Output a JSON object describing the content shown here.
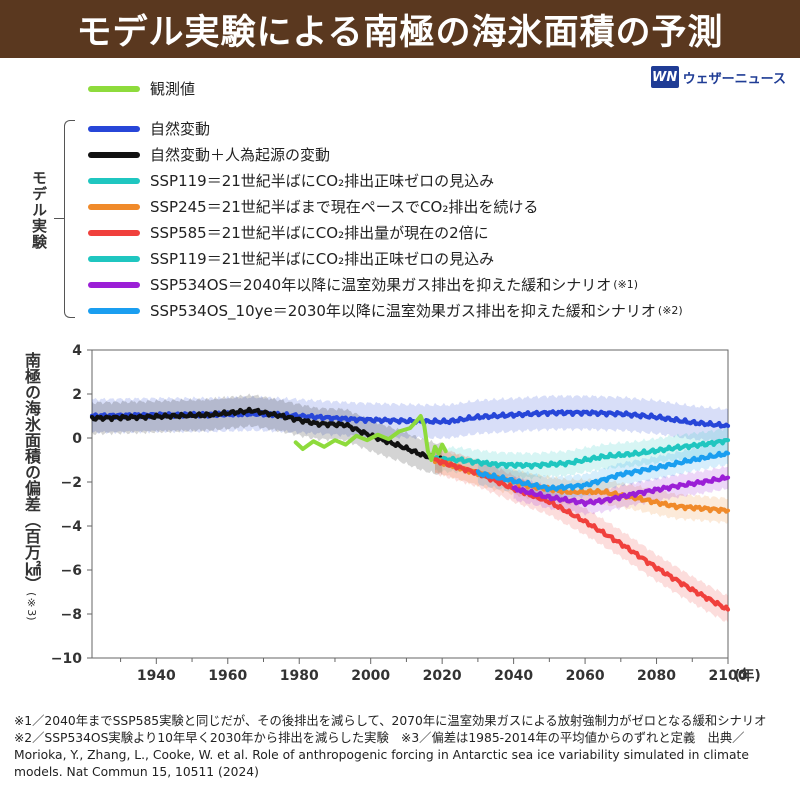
{
  "header": {
    "title": "モデル実験による南極の海氷面積の予測"
  },
  "brand": {
    "logo_text": "WN",
    "name": "ウェザーニュース"
  },
  "legend": {
    "observed": {
      "label": "観測値",
      "color": "#8edb3c"
    },
    "group_label": "モデル実験",
    "models": [
      {
        "label": "自然変動",
        "color": "#2746d8",
        "note": ""
      },
      {
        "label": "自然変動＋人為起源の変動",
        "color": "#111111",
        "note": ""
      },
      {
        "label": "SSP119＝21世紀半ばにCO₂排出正味ゼロの見込み",
        "color": "#1fc6c0",
        "note": ""
      },
      {
        "label": "SSP245＝21世紀半ばまで現在ペースでCO₂排出を続ける",
        "color": "#f08a2a",
        "note": ""
      },
      {
        "label": "SSP585＝21世紀半ばにCO₂排出量が現在の2倍に",
        "color": "#f0403c",
        "note": ""
      },
      {
        "label": "SSP119＝21世紀半ばにCO₂排出正味ゼロの見込み",
        "color": "#1fc6c0",
        "note": ""
      },
      {
        "label": "SSP534OS＝2040年以降に温室効果ガス排出を抑えた緩和シナリオ",
        "color": "#9b1fd6",
        "note": "(※1)"
      },
      {
        "label": "SSP534OS_10ye＝2030年以降に温室効果ガス排出を抑えた緩和シナリオ",
        "color": "#1a9ef0",
        "note": "(※2)"
      }
    ]
  },
  "axis": {
    "ylabel": "南極の海氷面積の偏差（百万㎢）",
    "ylabel_note": "(※3)",
    "x_unit": "(年)"
  },
  "chart_data": {
    "type": "line",
    "xlabel": "(年)",
    "ylabel": "南極の海氷面積の偏差（百万㎢）(※3)",
    "xlim": [
      1922,
      2100
    ],
    "ylim": [
      -10,
      4
    ],
    "xticks": [
      1940,
      1960,
      1980,
      2000,
      2020,
      2040,
      2060,
      2080,
      2100
    ],
    "yticks": [
      4,
      2,
      0,
      -2,
      -4,
      -6,
      -8,
      -10
    ],
    "grid": false,
    "series": [
      {
        "name": "自然変動",
        "color": "#2746d8",
        "band": 0.75,
        "points": [
          [
            1922,
            1.0
          ],
          [
            1940,
            1.05
          ],
          [
            1955,
            1.05
          ],
          [
            1967,
            1.1
          ],
          [
            1975,
            1.05
          ],
          [
            1985,
            0.95
          ],
          [
            1995,
            0.85
          ],
          [
            2005,
            0.8
          ],
          [
            2015,
            0.75
          ],
          [
            2022,
            0.75
          ],
          [
            2030,
            0.95
          ],
          [
            2040,
            1.05
          ],
          [
            2050,
            1.15
          ],
          [
            2060,
            1.15
          ],
          [
            2070,
            1.1
          ],
          [
            2080,
            0.95
          ],
          [
            2090,
            0.7
          ],
          [
            2100,
            0.55
          ]
        ]
      },
      {
        "name": "自然変動＋人為起源の変動",
        "color": "#111111",
        "band": 0.7,
        "points": [
          [
            1922,
            0.9
          ],
          [
            1935,
            0.95
          ],
          [
            1945,
            1.0
          ],
          [
            1955,
            1.05
          ],
          [
            1967,
            1.25
          ],
          [
            1975,
            1.0
          ],
          [
            1985,
            0.65
          ],
          [
            1993,
            0.6
          ],
          [
            2000,
            0.1
          ],
          [
            2008,
            -0.35
          ],
          [
            2015,
            -0.8
          ],
          [
            2020,
            -1.0
          ]
        ]
      },
      {
        "name": "SSP119＝21世紀半ばにCO₂排出正味ゼロの見込み",
        "color": "#1fc6c0",
        "band": 0.55,
        "points": [
          [
            2018,
            -0.95
          ],
          [
            2025,
            -1.0
          ],
          [
            2035,
            -1.2
          ],
          [
            2045,
            -1.25
          ],
          [
            2055,
            -1.15
          ],
          [
            2065,
            -0.85
          ],
          [
            2075,
            -0.7
          ],
          [
            2085,
            -0.45
          ],
          [
            2095,
            -0.25
          ],
          [
            2100,
            -0.1
          ]
        ]
      },
      {
        "name": "SSP245＝21世紀半ばまで現在ペースでCO₂排出を続ける",
        "color": "#f08a2a",
        "band": 0.55,
        "points": [
          [
            2018,
            -1.0
          ],
          [
            2030,
            -1.6
          ],
          [
            2045,
            -2.2
          ],
          [
            2055,
            -2.45
          ],
          [
            2065,
            -2.45
          ],
          [
            2075,
            -2.75
          ],
          [
            2085,
            -3.1
          ],
          [
            2093,
            -3.2
          ],
          [
            2100,
            -3.3
          ]
        ]
      },
      {
        "name": "SSP585＝21世紀半ばにCO₂排出量が現在の2倍に",
        "color": "#f0403c",
        "band": 0.6,
        "points": [
          [
            2018,
            -1.0
          ],
          [
            2030,
            -1.6
          ],
          [
            2040,
            -2.3
          ],
          [
            2050,
            -2.9
          ],
          [
            2060,
            -3.8
          ],
          [
            2070,
            -4.8
          ],
          [
            2080,
            -5.9
          ],
          [
            2090,
            -6.9
          ],
          [
            2100,
            -7.8
          ]
        ]
      },
      {
        "name": "SSP534OS＝2040年以降に温室効果ガス排出を抑えた緩和シナリオ",
        "color": "#9b1fd6",
        "band": 0.5,
        "points": [
          [
            2040,
            -2.3
          ],
          [
            2050,
            -2.7
          ],
          [
            2060,
            -2.95
          ],
          [
            2065,
            -2.85
          ],
          [
            2075,
            -2.5
          ],
          [
            2085,
            -2.2
          ],
          [
            2093,
            -2.0
          ],
          [
            2100,
            -1.8
          ]
        ]
      },
      {
        "name": "SSP534OS_10ye＝2030年以降に温室効果ガス排出を抑えた緩和シナリオ",
        "color": "#1a9ef0",
        "band": 0.5,
        "points": [
          [
            2030,
            -1.6
          ],
          [
            2040,
            -1.95
          ],
          [
            2050,
            -2.3
          ],
          [
            2060,
            -2.15
          ],
          [
            2070,
            -1.65
          ],
          [
            2080,
            -1.35
          ],
          [
            2090,
            -1.0
          ],
          [
            2100,
            -0.7
          ]
        ]
      },
      {
        "name": "観測値",
        "color": "#8edb3c",
        "band": 0,
        "points": [
          [
            1979,
            -0.2
          ],
          [
            1981,
            -0.5
          ],
          [
            1984,
            -0.15
          ],
          [
            1987,
            -0.4
          ],
          [
            1990,
            -0.1
          ],
          [
            1993,
            -0.3
          ],
          [
            1996,
            0.1
          ],
          [
            1999,
            -0.1
          ],
          [
            2002,
            0.15
          ],
          [
            2005,
            -0.05
          ],
          [
            2008,
            0.3
          ],
          [
            2011,
            0.45
          ],
          [
            2013,
            0.8
          ],
          [
            2014,
            1.0
          ],
          [
            2015,
            0.55
          ],
          [
            2016,
            -0.6
          ],
          [
            2017,
            -1.0
          ],
          [
            2018,
            -0.4
          ],
          [
            2019,
            -0.7
          ],
          [
            2020,
            -0.3
          ],
          [
            2021,
            -0.6
          ]
        ]
      }
    ]
  },
  "footer": {
    "text": "※1／2040年までSSP585実験と同じだが、その後排出を減らして、2070年に温室効果ガスによる放射強制力がゼロとなる緩和シナリオ　※2／SSP534OS実験より10年早く2030年から排出を減らした実験　※3／偏差は1985-2014年の平均値からのずれと定義　出典／Morioka, Y., Zhang, L., Cooke, W. et al. Role of anthropogenic forcing in Antarctic sea ice variability simulated in climate models. Nat Commun 15, 10511 (2024)"
  }
}
